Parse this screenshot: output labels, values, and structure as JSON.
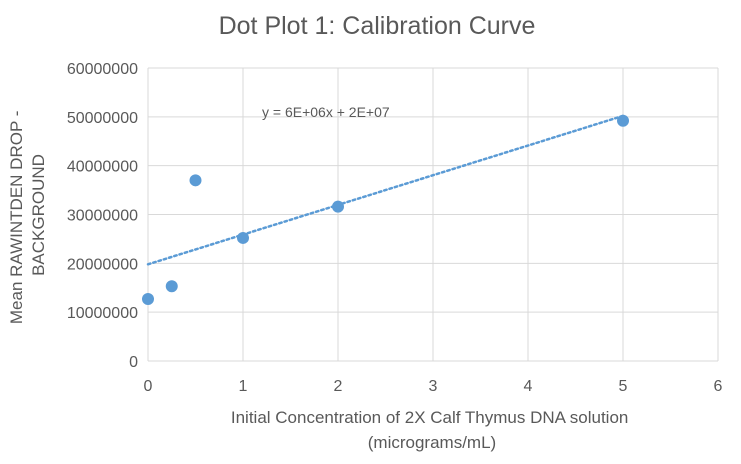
{
  "chart_data": {
    "type": "scatter",
    "title": "Dot Plot 1: Calibration Curve",
    "xlabel_lines": [
      "Initial Concentration of 2X Calf Thymus DNA solution",
      "(micrograms/mL)"
    ],
    "ylabel_lines": [
      "Mean RAWINTDEN DROP -",
      "BACKGROUND"
    ],
    "xlim": [
      0,
      6
    ],
    "ylim": [
      0,
      60000000
    ],
    "x_ticks": [
      0,
      1,
      2,
      3,
      4,
      5,
      6
    ],
    "y_ticks": [
      0,
      10000000,
      20000000,
      30000000,
      40000000,
      50000000,
      60000000
    ],
    "grid": true,
    "legend": "none",
    "series": [
      {
        "points": [
          {
            "x": 0,
            "y": 12700000
          },
          {
            "x": 0.25,
            "y": 15300000
          },
          {
            "x": 0.5,
            "y": 37000000
          },
          {
            "x": 1,
            "y": 25200000
          },
          {
            "x": 2,
            "y": 31600000
          },
          {
            "x": 5,
            "y": 49200000
          }
        ],
        "color": "#5b9bd5"
      }
    ],
    "trendline": {
      "type": "linear",
      "from": {
        "x": 0,
        "y": 19800000
      },
      "to": {
        "x": 5,
        "y": 50200000
      },
      "style": "dotted",
      "color": "#5b9bd5",
      "equation": "y = 6E+06x + 2E+07",
      "equation_anchor": {
        "x": 1.2,
        "y": 50000000
      }
    },
    "colors": {
      "grid": "#d9d9d9",
      "text": "#595959",
      "marker": "#5b9bd5"
    }
  }
}
